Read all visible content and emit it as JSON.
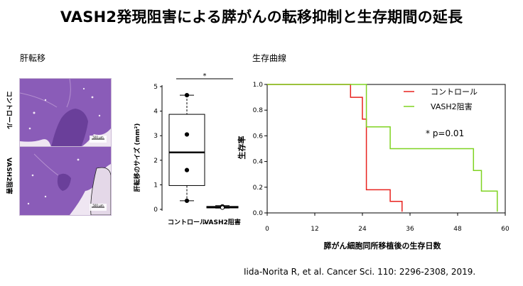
{
  "title": "VASH2発現阻害による膵がんの転移抑制と生存期間の延長",
  "liver_section": {
    "heading": "肝転移",
    "images": [
      {
        "label": "コントロール",
        "scale_text": "500 μm"
      },
      {
        "label": "VASH2阻害",
        "scale_text": "500 μm"
      }
    ]
  },
  "survival_section": {
    "heading": "生存曲線"
  },
  "citation": "Iida-Norita R, et al. Cancer Sci. 110: 2296-2308, 2019.",
  "colors": {
    "control": "#e8231f",
    "vash2": "#7fd321",
    "tissue": "#8a5cb8"
  },
  "chart_data": [
    {
      "type": "box",
      "ylabel": "肝転移のサイズ (mm²)",
      "ylim": [
        0,
        5
      ],
      "yticks": [
        0,
        1,
        2,
        3,
        4,
        5
      ],
      "significance": "*",
      "categories": [
        "コントロール",
        "VASH2阻害"
      ],
      "boxes": [
        {
          "name": "コントロール",
          "whisker_low": 0.35,
          "q1": 0.97,
          "median": 2.32,
          "q3": 3.87,
          "whisker_high": 4.65,
          "points": [
            4.65,
            3.05,
            1.6,
            0.35
          ]
        },
        {
          "name": "VASH2阻害",
          "whisker_low": 0.05,
          "q1": 0.06,
          "median": 0.08,
          "q3": 0.12,
          "whisker_high": 0.15,
          "points": [
            0.12,
            0.09,
            0.07
          ]
        }
      ]
    },
    {
      "type": "line",
      "xlabel": "膵がん細胞同所移植後の生存日数",
      "ylabel": "生存率",
      "xlim": [
        0,
        60
      ],
      "ylim": [
        0,
        1.0
      ],
      "xticks": [
        0,
        12,
        24,
        36,
        48,
        60
      ],
      "yticks": [
        0.0,
        0.2,
        0.4,
        0.6,
        0.8,
        1.0
      ],
      "annotation": "* p=0.01",
      "legend_position": "top-right",
      "series": [
        {
          "name": "コントロール",
          "color": "#e8231f",
          "steps": [
            [
              0,
              1.0
            ],
            [
              21,
              1.0
            ],
            [
              21,
              0.9
            ],
            [
              24,
              0.9
            ],
            [
              24,
              0.73
            ],
            [
              25,
              0.73
            ],
            [
              25,
              0.18
            ],
            [
              31,
              0.18
            ],
            [
              31,
              0.09
            ],
            [
              34,
              0.09
            ],
            [
              34,
              0.01
            ]
          ]
        },
        {
          "name": "VASH2阻害",
          "color": "#7fd321",
          "steps": [
            [
              0,
              1.0
            ],
            [
              25,
              1.0
            ],
            [
              25,
              0.67
            ],
            [
              31,
              0.67
            ],
            [
              31,
              0.5
            ],
            [
              52,
              0.5
            ],
            [
              52,
              0.33
            ],
            [
              54,
              0.33
            ],
            [
              54,
              0.17
            ],
            [
              58,
              0.17
            ],
            [
              58,
              0.01
            ]
          ]
        }
      ]
    }
  ]
}
